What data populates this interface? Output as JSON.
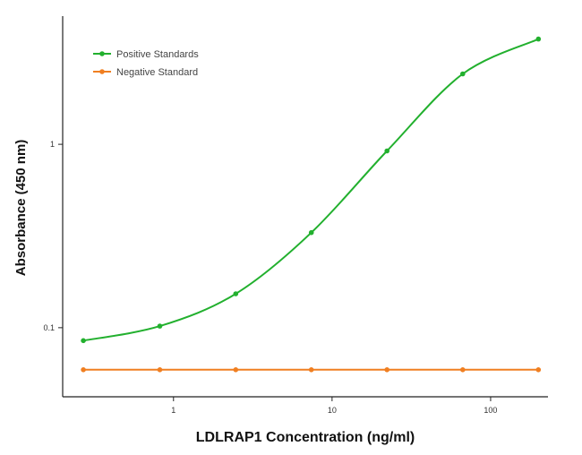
{
  "chart_data": {
    "type": "scatter",
    "xlabel": "LDLRAP1 Concentration (ng/ml)",
    "ylabel": "Absorbance (450 nm)",
    "x_scale": "log",
    "y_scale": "log",
    "xlim": [
      0.2,
      230
    ],
    "ylim": [
      0.042,
      5.0
    ],
    "x_ticks": [
      1,
      10,
      100
    ],
    "x_tick_labels": [
      "1",
      "10",
      "100"
    ],
    "y_ticks": [
      0.1,
      1
    ],
    "y_tick_labels": [
      "0.1",
      "1"
    ],
    "grid": false,
    "legend_position": "top-left",
    "series": [
      {
        "name": "Positive Standards",
        "color": "#22b02e",
        "marker": "circle",
        "fit": "4PL curve",
        "x": [
          0.27,
          0.82,
          2.47,
          7.4,
          22.2,
          66.7,
          200
        ],
        "y": [
          0.085,
          0.102,
          0.153,
          0.33,
          0.92,
          2.42,
          3.75
        ]
      },
      {
        "name": "Negative Standard",
        "color": "#f07f21",
        "marker": "circle",
        "fit": "line",
        "x": [
          0.27,
          0.82,
          2.47,
          7.4,
          22.2,
          66.7,
          200
        ],
        "y": [
          0.059,
          0.059,
          0.059,
          0.059,
          0.059,
          0.059,
          0.059
        ]
      }
    ]
  }
}
